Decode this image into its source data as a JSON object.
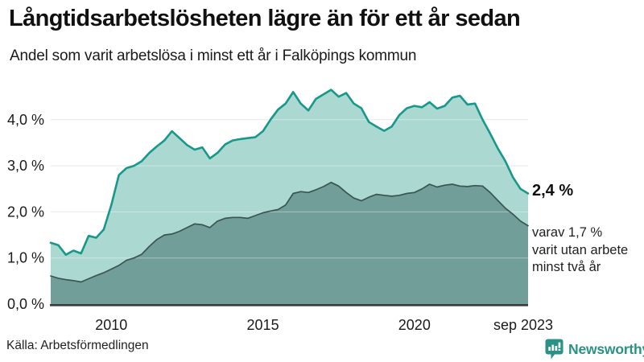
{
  "header": {
    "title": "Långtidsarbetslösheten lägre än för ett år sedan",
    "subtitle": "Andel som varit arbetslösa i minst ett år i Falköpings kommun"
  },
  "chart_data": {
    "type": "area",
    "title": "Långtidsarbetslösheten lägre än för ett år sedan",
    "subtitle": "Andel som varit arbetslösa i minst ett år i Falköpings kommun",
    "xlabel": "",
    "ylabel": "",
    "x_unit": "decimal year (quarterly samples of monthly series)",
    "xlim": [
      2008,
      2023.75
    ],
    "ylim": [
      0,
      4.8
    ],
    "grid": true,
    "legend": "none (direct end-of-line labels)",
    "x": [
      2008.0,
      2008.25,
      2008.5,
      2008.75,
      2009.0,
      2009.25,
      2009.5,
      2009.75,
      2010.0,
      2010.25,
      2010.5,
      2010.75,
      2011.0,
      2011.25,
      2011.5,
      2011.75,
      2012.0,
      2012.25,
      2012.5,
      2012.75,
      2013.0,
      2013.25,
      2013.5,
      2013.75,
      2014.0,
      2014.25,
      2014.5,
      2014.75,
      2015.0,
      2015.25,
      2015.5,
      2015.75,
      2016.0,
      2016.25,
      2016.5,
      2016.75,
      2017.0,
      2017.25,
      2017.5,
      2017.75,
      2018.0,
      2018.25,
      2018.5,
      2018.75,
      2019.0,
      2019.25,
      2019.5,
      2019.75,
      2020.0,
      2020.25,
      2020.5,
      2020.75,
      2021.0,
      2021.25,
      2021.5,
      2021.75,
      2022.0,
      2022.25,
      2022.5,
      2022.75,
      2023.0,
      2023.25,
      2023.5,
      2023.75
    ],
    "series": [
      {
        "name": "Andel arbetslösa minst ett år",
        "color": "#17988a",
        "fill": "#abd8d1",
        "line_width": 2.6,
        "end_value_label": "2,4 %",
        "values": [
          1.33,
          1.28,
          1.07,
          1.16,
          1.1,
          1.48,
          1.44,
          1.62,
          2.15,
          2.8,
          2.95,
          3.0,
          3.1,
          3.28,
          3.42,
          3.55,
          3.75,
          3.6,
          3.45,
          3.35,
          3.4,
          3.16,
          3.28,
          3.46,
          3.55,
          3.58,
          3.6,
          3.62,
          3.75,
          4.0,
          4.22,
          4.35,
          4.6,
          4.35,
          4.2,
          4.45,
          4.55,
          4.65,
          4.5,
          4.58,
          4.35,
          4.25,
          3.95,
          3.85,
          3.76,
          3.85,
          4.1,
          4.25,
          4.3,
          4.27,
          4.38,
          4.24,
          4.3,
          4.48,
          4.52,
          4.33,
          4.35,
          4.0,
          3.7,
          3.38,
          3.1,
          2.75,
          2.5,
          2.4
        ]
      },
      {
        "name": "varav arbetslösa minst två år",
        "color": "#3b5551",
        "fill": "#719e99",
        "line_width": 1.7,
        "end_value_label": "1,7 %",
        "values": [
          0.61,
          0.56,
          0.53,
          0.51,
          0.48,
          0.55,
          0.62,
          0.68,
          0.76,
          0.84,
          0.95,
          1.0,
          1.08,
          1.25,
          1.4,
          1.5,
          1.52,
          1.58,
          1.66,
          1.74,
          1.72,
          1.66,
          1.8,
          1.86,
          1.88,
          1.88,
          1.86,
          1.92,
          1.98,
          2.02,
          2.05,
          2.15,
          2.4,
          2.44,
          2.42,
          2.48,
          2.55,
          2.64,
          2.56,
          2.42,
          2.3,
          2.24,
          2.32,
          2.38,
          2.36,
          2.34,
          2.36,
          2.4,
          2.42,
          2.5,
          2.6,
          2.54,
          2.58,
          2.6,
          2.56,
          2.55,
          2.57,
          2.56,
          2.42,
          2.25,
          2.08,
          1.95,
          1.8,
          1.7
        ]
      }
    ],
    "yticks": {
      "values": [
        0,
        1,
        2,
        3,
        4
      ],
      "labels": [
        "0,0 %",
        "1,0 %",
        "2,0 %",
        "3,0 %",
        "4,0 %"
      ]
    },
    "xticks": {
      "values": [
        2010,
        2015,
        2020,
        2023.75
      ],
      "labels": [
        "2010",
        "2015",
        "2020",
        "sep 2023"
      ]
    }
  },
  "annotations": {
    "primary": "2,4 %",
    "secondary": "varav 1,7 %\nvarit utan arbete\nminst två år"
  },
  "footer": {
    "source": "Källa: Arbetsförmedlingen",
    "brand": "Newsworthy"
  },
  "colors": {
    "accent": "#2a9186",
    "grid": "#dedede",
    "grid_overlay": "rgba(255,255,255,0.38)",
    "axis": "#3a3a3a",
    "text": "#1a1a1a"
  }
}
